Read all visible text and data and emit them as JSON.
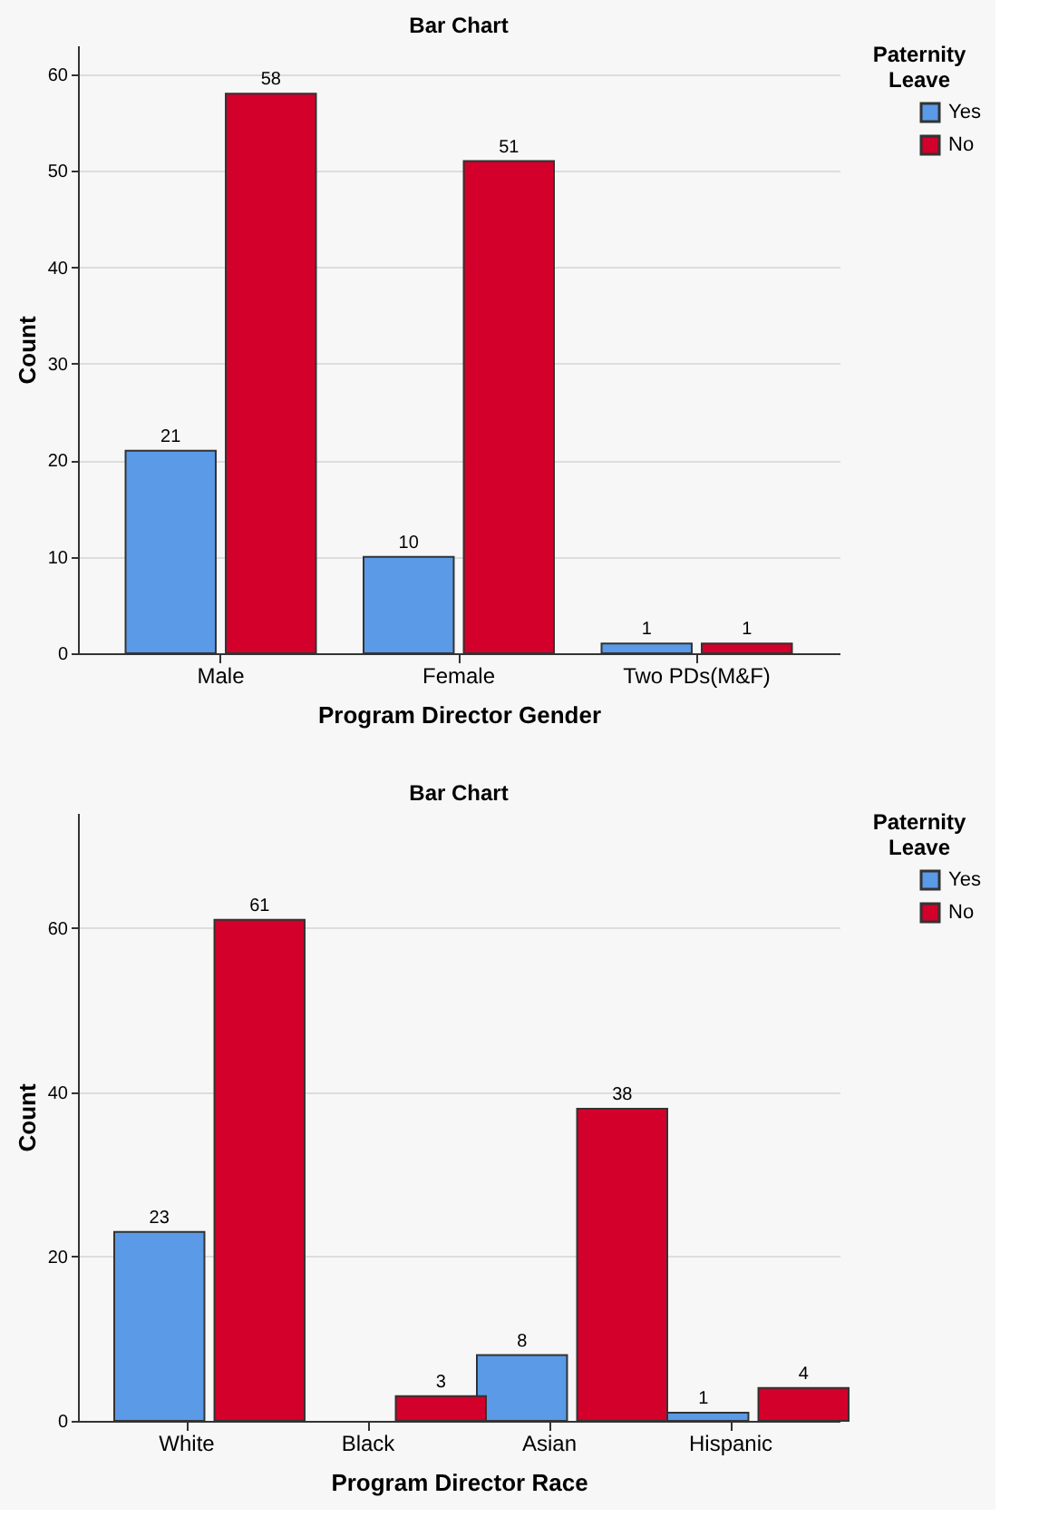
{
  "chart_data": [
    {
      "type": "bar",
      "title": "Bar Chart",
      "xlabel": "Program Director Gender",
      "ylabel": "Count",
      "legend_title": "Paternity Leave",
      "categories": [
        "Male",
        "Female",
        "Two PDs(M&F)"
      ],
      "series": [
        {
          "name": "Yes",
          "color": "#5a9ae6",
          "values": [
            21,
            10,
            1
          ]
        },
        {
          "name": "No",
          "color": "#d2002a",
          "values": [
            58,
            51,
            1
          ]
        }
      ],
      "ylim": [
        0,
        63
      ],
      "yticks": [
        0,
        10,
        20,
        30,
        40,
        50,
        60
      ],
      "grid": "y",
      "legend": "top right",
      "data_labels": true
    },
    {
      "type": "bar",
      "title": "Bar Chart",
      "xlabel": "Program Director Race",
      "ylabel": "Count",
      "legend_title": "Paternity Leave",
      "categories": [
        "White",
        "Black",
        "Asian",
        "Hispanic"
      ],
      "series": [
        {
          "name": "Yes",
          "color": "#5a9ae6",
          "values": [
            23,
            null,
            8,
            1
          ]
        },
        {
          "name": "No",
          "color": "#d2002a",
          "values": [
            61,
            3,
            38,
            4
          ]
        }
      ],
      "ylim": [
        0,
        74
      ],
      "yticks": [
        0,
        20,
        40,
        60
      ],
      "grid": "y",
      "legend": "top right",
      "data_labels": true
    }
  ]
}
